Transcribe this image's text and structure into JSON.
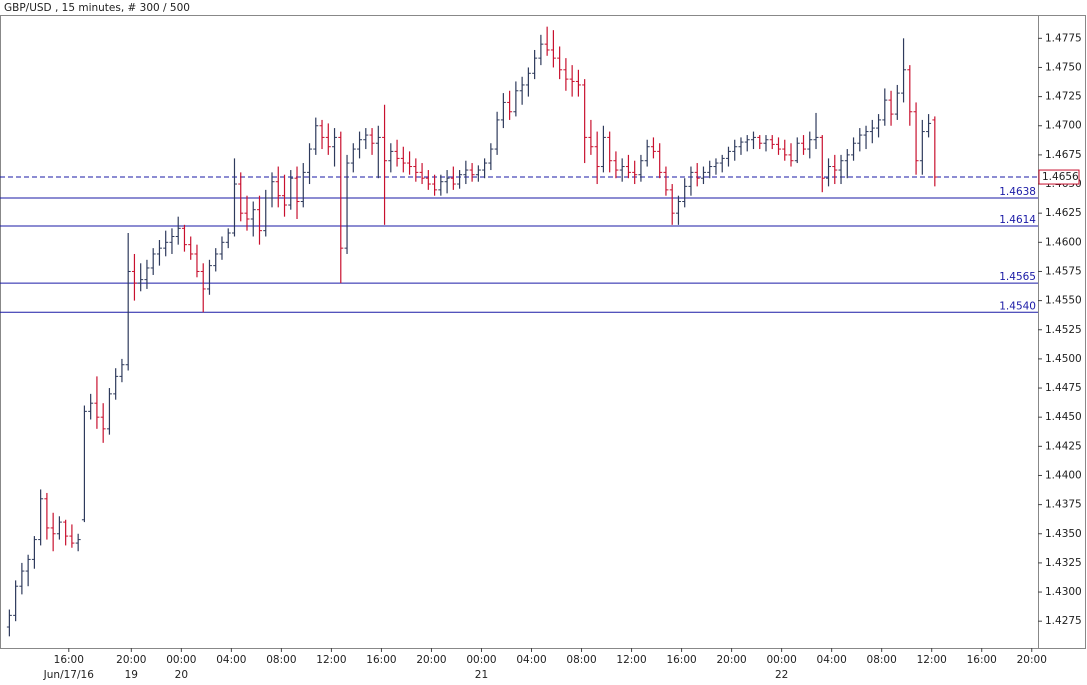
{
  "chart_data": {
    "type": "ohlc",
    "title": "GBP/USD , 15 minutes, # 300 / 500",
    "up_color": "#2e3a5c",
    "down_color": "#c8102e",
    "level_color": "#1a1aa6",
    "last_price_color": "#1a1aa6",
    "last_price_box_color": "#c8102e",
    "grid": false,
    "xlim": [
      -1.5,
      164.5
    ],
    "ylim": [
      1.4252,
      1.4795
    ],
    "xticks": [
      {
        "value": 9.5,
        "label": "16:00"
      },
      {
        "value": 19.5,
        "label": "20:00"
      },
      {
        "value": 27.5,
        "label": "00:00"
      },
      {
        "value": 35.5,
        "label": "04:00"
      },
      {
        "value": 43.5,
        "label": "08:00"
      },
      {
        "value": 51.5,
        "label": "12:00"
      },
      {
        "value": 59.5,
        "label": "16:00"
      },
      {
        "value": 67.5,
        "label": "20:00"
      },
      {
        "value": 75.5,
        "label": "00:00"
      },
      {
        "value": 83.5,
        "label": "04:00"
      },
      {
        "value": 91.5,
        "label": "08:00"
      },
      {
        "value": 99.5,
        "label": "12:00"
      },
      {
        "value": 107.5,
        "label": "16:00"
      },
      {
        "value": 115.5,
        "label": "20:00"
      },
      {
        "value": 123.5,
        "label": "00:00"
      },
      {
        "value": 131.5,
        "label": "04:00"
      },
      {
        "value": 139.5,
        "label": "08:00"
      },
      {
        "value": 147.5,
        "label": "12:00"
      },
      {
        "value": 155.5,
        "label": "16:00"
      },
      {
        "value": 163.5,
        "label": "20:00"
      }
    ],
    "date_ticks": [
      {
        "value": 9.5,
        "label": "Jun/17/16"
      },
      {
        "value": 19.5,
        "label": "19"
      },
      {
        "value": 27.5,
        "label": "20"
      },
      {
        "value": 75.5,
        "label": "21"
      },
      {
        "value": 123.5,
        "label": "22"
      }
    ],
    "yticks": [
      1.4275,
      {
        "value": 1.43,
        "label": "1.4300"
      },
      1.4325,
      {
        "value": 1.435,
        "label": "1.4350"
      },
      1.4375,
      {
        "value": 1.44,
        "label": "1.4400"
      },
      1.4425,
      {
        "value": 1.445,
        "label": "1.4450"
      },
      1.4475,
      {
        "value": 1.45,
        "label": "1.4500"
      },
      1.4525,
      {
        "value": 1.455,
        "label": "1.4550"
      },
      1.4575,
      {
        "value": 1.46,
        "label": "1.4600"
      },
      1.4625,
      {
        "value": 1.465,
        "label": "1.4650"
      },
      1.4675,
      {
        "value": 1.47,
        "label": "1.4700"
      },
      1.4725,
      {
        "value": 1.475,
        "label": "1.4750"
      },
      1.4775
    ],
    "levels": [
      1.4638,
      1.4614,
      1.4565,
      {
        "value": 1.454,
        "label": "1.4540"
      }
    ],
    "last_price": 1.4656,
    "open": [
      1.427,
      1.428,
      1.4305,
      1.4318,
      1.4328,
      1.4345,
      1.438,
      1.4355,
      1.435,
      1.436,
      1.4348,
      1.4342,
      1.4362,
      1.4455,
      1.4462,
      1.445,
      1.444,
      1.447,
      1.4485,
      1.4495,
      1.4575,
      1.4565,
      1.4568,
      1.4578,
      1.459,
      1.4595,
      1.46,
      1.4605,
      1.4612,
      1.4598,
      1.459,
      1.4575,
      1.456,
      1.458,
      1.459,
      1.46,
      1.4608,
      1.465,
      1.4625,
      1.462,
      1.4628,
      1.461,
      1.4638,
      1.4652,
      1.464,
      1.4632,
      1.4655,
      1.4635,
      1.466,
      1.468,
      1.47,
      1.469,
      1.4682,
      1.469,
      1.4595,
      1.4668,
      1.468,
      1.4688,
      1.4692,
      1.4685,
      1.469,
      1.467,
      1.4678,
      1.4672,
      1.4668,
      1.4665,
      1.466,
      1.4655,
      1.465,
      1.4645,
      1.4652,
      1.4655,
      1.465,
      1.4658,
      1.4662,
      1.4658,
      1.4662,
      1.4668,
      1.468,
      1.4705,
      1.472,
      1.4712,
      1.473,
      1.4735,
      1.4745,
      1.4758,
      1.477,
      1.4765,
      1.4758,
      1.4748,
      1.474,
      1.4738,
      1.4735,
      1.469,
      1.4682,
      1.4665,
      1.469,
      1.467,
      1.4662,
      1.4665,
      1.466,
      1.4658,
      1.467,
      1.4682,
      1.4678,
      1.466,
      1.4645,
      1.4625,
      1.4635,
      1.4648,
      1.466,
      1.4655,
      1.466,
      1.4665,
      1.4668,
      1.4672,
      1.4678,
      1.4682,
      1.4686,
      1.4688,
      1.469,
      1.4685,
      1.4688,
      1.4684,
      1.468,
      1.4675,
      1.467,
      1.4685,
      1.468,
      1.4688,
      1.469,
      1.4655,
      1.4665,
      1.4662,
      1.467,
      1.4675,
      1.4685,
      1.4692,
      1.4695,
      1.4698,
      1.4705,
      1.4722,
      1.471,
      1.4728,
      1.4748,
      1.4712,
      1.467,
      1.4695,
      1.4705
    ],
    "high": [
      1.4285,
      1.431,
      1.4325,
      1.4332,
      1.4348,
      1.4388,
      1.4385,
      1.4368,
      1.4365,
      1.4362,
      1.4358,
      1.435,
      1.446,
      1.447,
      1.4485,
      1.4462,
      1.4475,
      1.4492,
      1.45,
      1.4608,
      1.459,
      1.4582,
      1.4585,
      1.4595,
      1.4602,
      1.461,
      1.4612,
      1.4622,
      1.4615,
      1.4605,
      1.4598,
      1.4582,
      1.4585,
      1.4595,
      1.4605,
      1.4612,
      1.4672,
      1.466,
      1.464,
      1.4635,
      1.464,
      1.4645,
      1.466,
      1.4665,
      1.4658,
      1.4662,
      1.4665,
      1.4668,
      1.4685,
      1.4707,
      1.4705,
      1.4702,
      1.4698,
      1.4695,
      1.4675,
      1.4685,
      1.4695,
      1.4698,
      1.4698,
      1.47,
      1.4718,
      1.4685,
      1.4688,
      1.4682,
      1.4678,
      1.4672,
      1.4668,
      1.4662,
      1.4658,
      1.4658,
      1.4662,
      1.4665,
      1.4662,
      1.467,
      1.4668,
      1.4666,
      1.4672,
      1.4685,
      1.4712,
      1.4728,
      1.473,
      1.4738,
      1.4742,
      1.475,
      1.4765,
      1.4778,
      1.4785,
      1.4782,
      1.4768,
      1.4758,
      1.4752,
      1.4748,
      1.474,
      1.4705,
      1.4695,
      1.47,
      1.4695,
      1.4678,
      1.4672,
      1.4675,
      1.467,
      1.4675,
      1.4688,
      1.469,
      1.4685,
      1.4665,
      1.465,
      1.464,
      1.4655,
      1.4665,
      1.4668,
      1.4665,
      1.467,
      1.4672,
      1.4675,
      1.4682,
      1.4688,
      1.469,
      1.4692,
      1.4695,
      1.4692,
      1.4692,
      1.4692,
      1.469,
      1.4688,
      1.4685,
      1.469,
      1.4692,
      1.4695,
      1.4711,
      1.4692,
      1.4672,
      1.4675,
      1.4675,
      1.468,
      1.469,
      1.4698,
      1.47,
      1.4705,
      1.471,
      1.4732,
      1.473,
      1.4735,
      1.4775,
      1.4752,
      1.472,
      1.4705,
      1.471,
      1.4708
    ],
    "low": [
      1.4262,
      1.4275,
      1.4298,
      1.4305,
      1.432,
      1.434,
      1.4345,
      1.4335,
      1.4345,
      1.434,
      1.4338,
      1.4335,
      1.436,
      1.4448,
      1.444,
      1.4428,
      1.4435,
      1.4465,
      1.448,
      1.449,
      1.455,
      1.4558,
      1.456,
      1.4572,
      1.458,
      1.4588,
      1.459,
      1.4598,
      1.4592,
      1.4585,
      1.457,
      1.454,
      1.4555,
      1.4575,
      1.4585,
      1.4595,
      1.4605,
      1.4618,
      1.461,
      1.4605,
      1.4598,
      1.4605,
      1.463,
      1.463,
      1.4622,
      1.4628,
      1.462,
      1.463,
      1.465,
      1.4675,
      1.468,
      1.4675,
      1.4665,
      1.4565,
      1.459,
      1.466,
      1.4672,
      1.468,
      1.4675,
      1.4655,
      1.4615,
      1.466,
      1.4665,
      1.466,
      1.4658,
      1.4652,
      1.465,
      1.4645,
      1.464,
      1.464,
      1.4642,
      1.4645,
      1.4646,
      1.465,
      1.4652,
      1.4652,
      1.4655,
      1.4662,
      1.4675,
      1.4698,
      1.4705,
      1.4708,
      1.4718,
      1.4725,
      1.474,
      1.4752,
      1.476,
      1.475,
      1.474,
      1.473,
      1.4725,
      1.4725,
      1.4668,
      1.4675,
      1.465,
      1.466,
      1.466,
      1.4655,
      1.4652,
      1.4655,
      1.465,
      1.4652,
      1.4665,
      1.4672,
      1.4655,
      1.464,
      1.4615,
      1.4615,
      1.463,
      1.464,
      1.4648,
      1.465,
      1.4655,
      1.4658,
      1.466,
      1.4665,
      1.467,
      1.4675,
      1.4678,
      1.468,
      1.468,
      1.4678,
      1.468,
      1.4675,
      1.467,
      1.4665,
      1.4668,
      1.4675,
      1.4672,
      1.468,
      1.4643,
      1.4648,
      1.465,
      1.465,
      1.4655,
      1.467,
      1.4678,
      1.468,
      1.4685,
      1.469,
      1.47,
      1.47,
      1.4705,
      1.472,
      1.47,
      1.4658,
      1.4658,
      1.469,
      1.4648
    ],
    "close": [
      1.428,
      1.4305,
      1.4318,
      1.4328,
      1.4345,
      1.438,
      1.4355,
      1.435,
      1.436,
      1.4348,
      1.4342,
      1.4345,
      1.4455,
      1.4462,
      1.445,
      1.444,
      1.447,
      1.4485,
      1.4495,
      1.4575,
      1.4565,
      1.4568,
      1.4578,
      1.459,
      1.4595,
      1.46,
      1.4605,
      1.4612,
      1.4598,
      1.459,
      1.4575,
      1.456,
      1.458,
      1.459,
      1.46,
      1.4608,
      1.465,
      1.4625,
      1.462,
      1.4628,
      1.461,
      1.4638,
      1.4652,
      1.464,
      1.4632,
      1.4655,
      1.4635,
      1.466,
      1.468,
      1.47,
      1.469,
      1.4682,
      1.469,
      1.4595,
      1.4668,
      1.468,
      1.4688,
      1.4692,
      1.4685,
      1.469,
      1.467,
      1.4678,
      1.4672,
      1.4668,
      1.4665,
      1.466,
      1.4655,
      1.465,
      1.4645,
      1.4652,
      1.4655,
      1.465,
      1.4658,
      1.4662,
      1.4658,
      1.4662,
      1.4668,
      1.468,
      1.4705,
      1.472,
      1.4712,
      1.473,
      1.4735,
      1.4745,
      1.4758,
      1.477,
      1.4765,
      1.4758,
      1.4748,
      1.474,
      1.4738,
      1.4735,
      1.469,
      1.4682,
      1.4665,
      1.469,
      1.467,
      1.4662,
      1.4665,
      1.466,
      1.4658,
      1.467,
      1.4682,
      1.4678,
      1.466,
      1.4645,
      1.4625,
      1.4635,
      1.4648,
      1.466,
      1.4655,
      1.466,
      1.4665,
      1.4668,
      1.4672,
      1.4678,
      1.4682,
      1.4686,
      1.4688,
      1.469,
      1.4685,
      1.4688,
      1.4684,
      1.468,
      1.4675,
      1.467,
      1.4685,
      1.468,
      1.4688,
      1.469,
      1.4655,
      1.4665,
      1.4662,
      1.467,
      1.4675,
      1.4685,
      1.4692,
      1.4695,
      1.4698,
      1.4705,
      1.4722,
      1.471,
      1.4728,
      1.4748,
      1.4712,
      1.467,
      1.4695,
      1.4702,
      1.4656
    ]
  }
}
